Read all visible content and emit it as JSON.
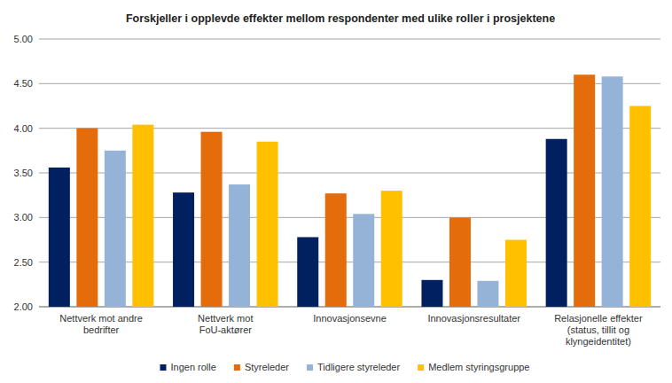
{
  "chart_data": {
    "type": "bar",
    "title": "Forskjeller i opplevde effekter mellom respondenter med ulike roller i prosjektene",
    "categories": [
      "Nettverk mot andre bedrifter",
      "Nettverk mot FoU-aktører",
      "Innovasjonsevne",
      "Innovasjonsresultater",
      "Relasjonelle effekter (status, tillit og klyngeidentitet)"
    ],
    "series": [
      {
        "name": "Ingen rolle",
        "color": "#002060",
        "values": [
          3.56,
          3.28,
          2.78,
          2.3,
          3.88
        ]
      },
      {
        "name": "Styreleder",
        "color": "#e46c0a",
        "values": [
          4.0,
          3.96,
          3.27,
          3.0,
          4.6
        ]
      },
      {
        "name": "Tidligere styreleder",
        "color": "#95b3d7",
        "values": [
          3.75,
          3.37,
          3.04,
          2.29,
          4.58
        ]
      },
      {
        "name": "Medlem styringsgruppe",
        "color": "#ffc000",
        "values": [
          4.04,
          3.85,
          3.3,
          2.75,
          4.25
        ]
      }
    ],
    "ylim": [
      2,
      5
    ],
    "yticks": [
      {
        "value": 2,
        "label": "2.00"
      },
      {
        "value": 2.5,
        "label": "2.50"
      },
      {
        "value": 3,
        "label": "3.00"
      },
      {
        "value": 3.5,
        "label": "3.50"
      },
      {
        "value": 4,
        "label": "4.00"
      },
      {
        "value": 4.5,
        "label": "4.50"
      },
      {
        "value": 5,
        "label": "5.00"
      }
    ],
    "grid": true,
    "legend": "bottom"
  }
}
